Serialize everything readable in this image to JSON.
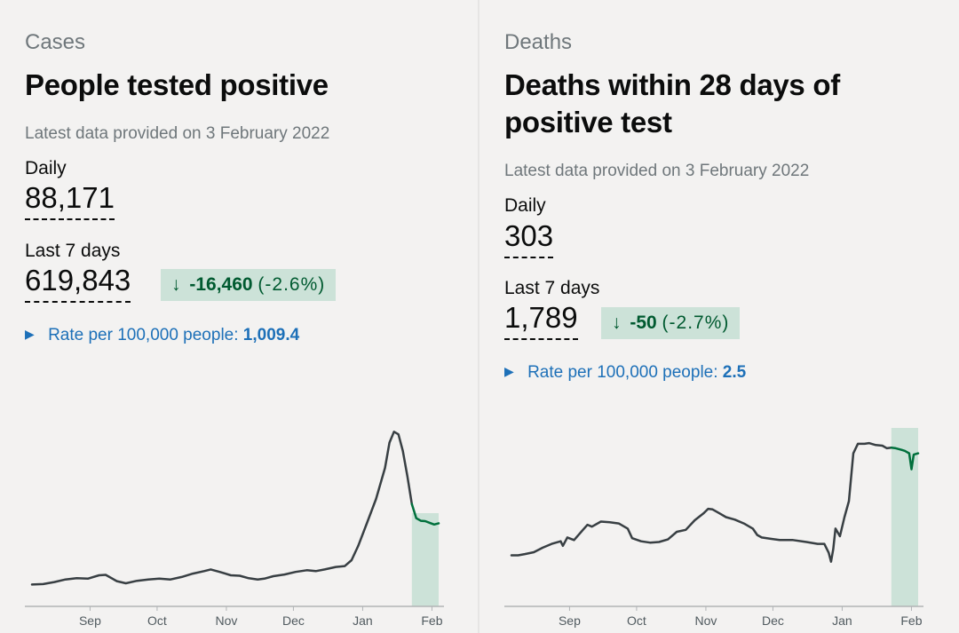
{
  "cards": {
    "cases": {
      "caption": "Cases",
      "title": "People tested positive",
      "updated": "Latest data provided on 3 February 2022",
      "daily_label": "Daily",
      "daily_value": "88,171",
      "week_label": "Last 7 days",
      "week_value": "619,843",
      "change_arrow": "↓",
      "change_value": "-16,460",
      "change_pct": "(-2.6%)",
      "rate_label": "Rate per 100,000 people:",
      "rate_value": "1,009.4"
    },
    "deaths": {
      "caption": "Deaths",
      "title": "Deaths within 28 days of positive test",
      "updated": "Latest data provided on 3 February 2022",
      "daily_label": "Daily",
      "daily_value": "303",
      "week_label": "Last 7 days",
      "week_value": "1,789",
      "change_arrow": "↓",
      "change_value": "-50",
      "change_pct": "(-2.7%)",
      "rate_label": "Rate per 100,000 people:",
      "rate_value": "2.5"
    }
  },
  "colors": {
    "line": "#383f43",
    "recent_line": "#00703c",
    "recent_fill": "#cce2d8",
    "link": "#1d70b8",
    "axis": "#b1b4b6"
  },
  "chart_data": [
    {
      "type": "line",
      "title": "People tested positive",
      "xlabel": "",
      "ylabel": "",
      "x_range": [
        "2021-08-06",
        "2022-02-03"
      ],
      "ylim": [
        0,
        220000
      ],
      "month_ticks": [
        "Sep",
        "Oct",
        "Nov",
        "Dec",
        "Jan",
        "Feb"
      ],
      "month_days": [
        26,
        56,
        87,
        117,
        148,
        179
      ],
      "recent_start_day": 170,
      "points": [
        [
          0,
          26000
        ],
        [
          5,
          26500
        ],
        [
          10,
          29000
        ],
        [
          15,
          32000
        ],
        [
          20,
          33500
        ],
        [
          25,
          33000
        ],
        [
          30,
          37000
        ],
        [
          33,
          37500
        ],
        [
          38,
          30000
        ],
        [
          42,
          27500
        ],
        [
          47,
          30500
        ],
        [
          52,
          32000
        ],
        [
          57,
          33000
        ],
        [
          62,
          32000
        ],
        [
          67,
          35000
        ],
        [
          72,
          39000
        ],
        [
          77,
          42000
        ],
        [
          80,
          44000
        ],
        [
          84,
          41000
        ],
        [
          89,
          37000
        ],
        [
          93,
          36500
        ],
        [
          97,
          33500
        ],
        [
          101,
          32000
        ],
        [
          104,
          33000
        ],
        [
          108,
          36000
        ],
        [
          113,
          38000
        ],
        [
          118,
          41000
        ],
        [
          123,
          43000
        ],
        [
          127,
          42000
        ],
        [
          131,
          44000
        ],
        [
          136,
          47000
        ],
        [
          140,
          48000
        ],
        [
          143,
          55000
        ],
        [
          146,
          72000
        ],
        [
          150,
          100000
        ],
        [
          154,
          128000
        ],
        [
          158,
          165000
        ],
        [
          160,
          195000
        ],
        [
          162,
          208000
        ],
        [
          164,
          205000
        ],
        [
          166,
          185000
        ],
        [
          168,
          155000
        ],
        [
          170,
          122000
        ],
        [
          172,
          105000
        ],
        [
          174,
          102000
        ],
        [
          176,
          101500
        ],
        [
          178,
          99500
        ],
        [
          180,
          97500
        ],
        [
          182,
          99000
        ]
      ]
    },
    {
      "type": "line",
      "title": "Deaths within 28 days of positive test",
      "xlabel": "",
      "ylabel": "",
      "x_range": [
        "2021-08-06",
        "2022-02-03"
      ],
      "ylim": [
        0,
        330
      ],
      "month_ticks": [
        "Sep",
        "Oct",
        "Nov",
        "Dec",
        "Jan",
        "Feb"
      ],
      "month_days": [
        26,
        56,
        87,
        117,
        148,
        179
      ],
      "recent_start_day": 170,
      "points": [
        [
          0,
          80
        ],
        [
          3,
          80
        ],
        [
          6,
          82
        ],
        [
          10,
          85
        ],
        [
          14,
          92
        ],
        [
          18,
          98
        ],
        [
          22,
          102
        ],
        [
          23,
          95
        ],
        [
          25,
          108
        ],
        [
          28,
          104
        ],
        [
          30,
          112
        ],
        [
          32,
          120
        ],
        [
          34,
          128
        ],
        [
          36,
          125
        ],
        [
          40,
          133
        ],
        [
          44,
          132
        ],
        [
          48,
          130
        ],
        [
          52,
          122
        ],
        [
          54,
          107
        ],
        [
          58,
          102
        ],
        [
          62,
          100
        ],
        [
          66,
          101
        ],
        [
          70,
          105
        ],
        [
          74,
          117
        ],
        [
          78,
          120
        ],
        [
          82,
          135
        ],
        [
          86,
          146
        ],
        [
          88,
          153
        ],
        [
          90,
          152
        ],
        [
          93,
          146
        ],
        [
          96,
          140
        ],
        [
          100,
          136
        ],
        [
          104,
          130
        ],
        [
          108,
          122
        ],
        [
          110,
          112
        ],
        [
          112,
          108
        ],
        [
          116,
          106
        ],
        [
          120,
          104
        ],
        [
          126,
          104
        ],
        [
          132,
          101
        ],
        [
          137,
          98
        ],
        [
          140,
          98
        ],
        [
          142,
          84
        ],
        [
          143,
          70
        ],
        [
          144,
          90
        ],
        [
          145,
          122
        ],
        [
          147,
          110
        ],
        [
          149,
          140
        ],
        [
          151,
          165
        ],
        [
          153,
          240
        ],
        [
          155,
          255
        ],
        [
          158,
          255
        ],
        [
          160,
          256
        ],
        [
          163,
          253
        ],
        [
          166,
          252
        ],
        [
          168,
          248
        ],
        [
          170,
          249
        ],
        [
          172,
          248
        ],
        [
          174,
          246
        ],
        [
          176,
          244
        ],
        [
          178,
          240
        ],
        [
          179,
          215
        ],
        [
          180,
          238
        ],
        [
          182,
          240
        ]
      ]
    }
  ]
}
